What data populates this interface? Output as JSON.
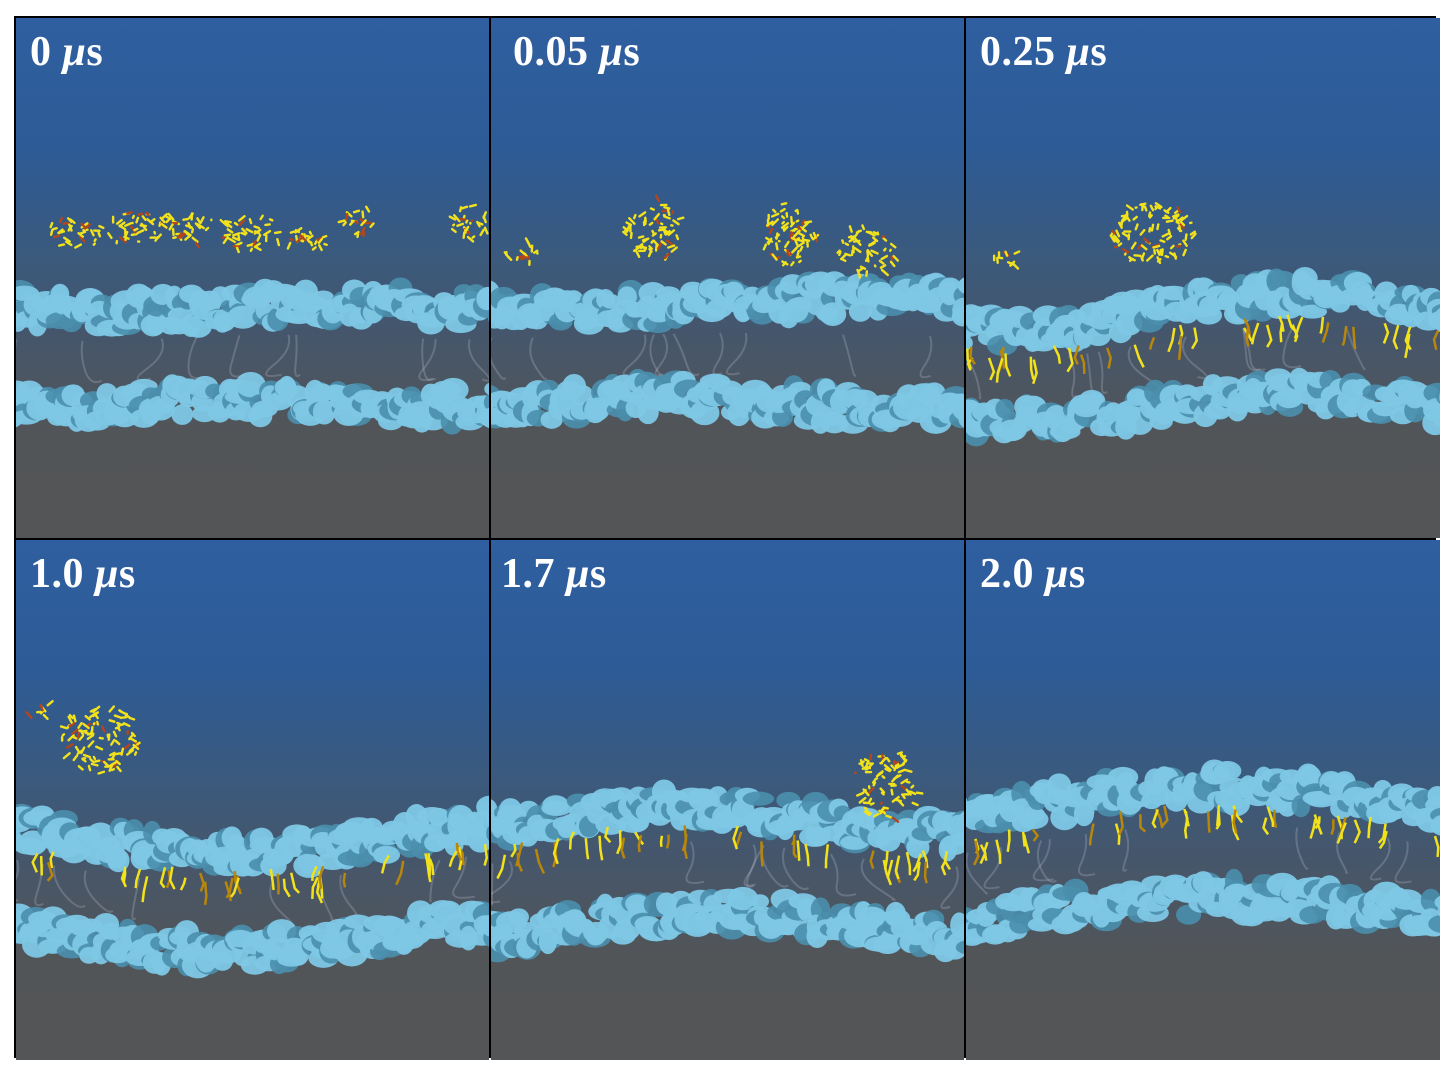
{
  "panels": [
    {
      "time": "0",
      "unit_prefix": "μ",
      "unit": "s"
    },
    {
      "time": "0.05",
      "unit_prefix": "μ",
      "unit": "s"
    },
    {
      "time": "0.25",
      "unit_prefix": "μ",
      "unit": "s"
    },
    {
      "time": "1.0",
      "unit_prefix": "μ",
      "unit": "s"
    },
    {
      "time": "1.7",
      "unit_prefix": "μ",
      "unit": "s"
    },
    {
      "time": "2.0",
      "unit_prefix": "μ",
      "unit": "s"
    }
  ],
  "colors": {
    "membrane": "#7ec8e6",
    "membrane_shadow": "#4a8fad",
    "polymer": "#f2e21c",
    "polymer_dark": "#b8860b",
    "background_top": "#2f5fa0",
    "background_bottom": "#545556"
  }
}
